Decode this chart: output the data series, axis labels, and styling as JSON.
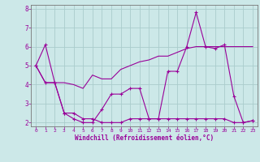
{
  "xlabel": "Windchill (Refroidissement éolien,°C)",
  "background_color": "#cce8e8",
  "grid_color": "#aacccc",
  "line_color": "#990099",
  "xlim": [
    -0.5,
    23.5
  ],
  "ylim": [
    1.8,
    8.2
  ],
  "yticks": [
    2,
    3,
    4,
    5,
    6,
    7,
    8
  ],
  "xticks": [
    0,
    1,
    2,
    3,
    4,
    5,
    6,
    7,
    8,
    9,
    10,
    11,
    12,
    13,
    14,
    15,
    16,
    17,
    18,
    19,
    20,
    21,
    22,
    23
  ],
  "line1_x": [
    0,
    1,
    2,
    3,
    4,
    5,
    6,
    7,
    8,
    9,
    10,
    11,
    12,
    13,
    14,
    15,
    16,
    17,
    18,
    19,
    20,
    21,
    22,
    23
  ],
  "line1_y": [
    5.0,
    6.1,
    4.1,
    2.5,
    2.2,
    2.0,
    2.0,
    2.7,
    3.5,
    3.5,
    3.8,
    3.8,
    2.2,
    2.2,
    4.7,
    4.7,
    6.0,
    7.8,
    6.0,
    5.9,
    6.1,
    3.4,
    2.0,
    2.1
  ],
  "line2_x": [
    0,
    1,
    2,
    3,
    4,
    5,
    6,
    7,
    8,
    9,
    10,
    11,
    12,
    13,
    14,
    15,
    16,
    17,
    18,
    19,
    20,
    21,
    22,
    23
  ],
  "line2_y": [
    5.0,
    4.1,
    4.1,
    2.5,
    2.5,
    2.2,
    2.2,
    2.0,
    2.0,
    2.0,
    2.2,
    2.2,
    2.2,
    2.2,
    2.2,
    2.2,
    2.2,
    2.2,
    2.2,
    2.2,
    2.2,
    2.0,
    2.0,
    2.1
  ],
  "line3_x": [
    0,
    1,
    2,
    3,
    4,
    5,
    6,
    7,
    8,
    9,
    10,
    11,
    12,
    13,
    14,
    15,
    16,
    17,
    18,
    19,
    20,
    21,
    22,
    23
  ],
  "line3_y": [
    5.0,
    4.1,
    4.1,
    4.1,
    4.0,
    3.8,
    4.5,
    4.3,
    4.3,
    4.8,
    5.0,
    5.2,
    5.3,
    5.5,
    5.5,
    5.7,
    5.9,
    6.0,
    6.0,
    6.0,
    6.0,
    6.0,
    6.0,
    6.0
  ]
}
